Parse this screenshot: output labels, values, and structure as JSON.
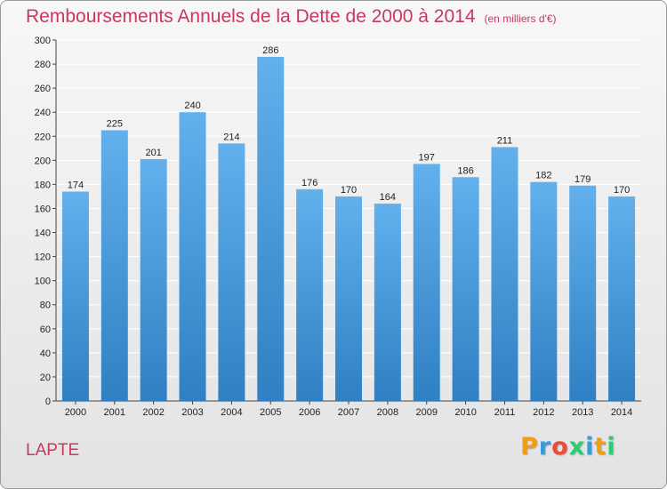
{
  "header": {
    "title": "Remboursements Annuels de la Dette de 2000 à 2014",
    "unit": "(en milliers d'€)"
  },
  "footer": {
    "commune": "LAPTE",
    "logo_letters": [
      "P",
      "r",
      "o",
      "x",
      "i",
      "t",
      "i"
    ],
    "logo_colors": [
      "#f39c12",
      "#3b9ad9",
      "#e74c3c",
      "#2ecc71",
      "#3b9ad9",
      "#f39c12",
      "#2ecc71"
    ]
  },
  "colors": {
    "bar_light": "#62b0ec",
    "bar_dark": "#2f80c4",
    "title": "#c8385f",
    "grid": "#ffffff"
  },
  "chart_data": {
    "type": "bar",
    "title": "Remboursements Annuels de la Dette de 2000 à 2014",
    "subtitle": "(en milliers d'€)",
    "xlabel": "",
    "ylabel": "",
    "categories": [
      "2000",
      "2001",
      "2002",
      "2003",
      "2004",
      "2005",
      "2006",
      "2007",
      "2008",
      "2009",
      "2010",
      "2011",
      "2012",
      "2013",
      "2014"
    ],
    "values": [
      174,
      225,
      201,
      240,
      214,
      286,
      176,
      170,
      164,
      197,
      186,
      211,
      182,
      179,
      170
    ],
    "ylim": [
      0,
      300
    ],
    "yticks": [
      0,
      20,
      40,
      60,
      80,
      100,
      120,
      140,
      160,
      180,
      200,
      220,
      240,
      260,
      280,
      300
    ],
    "grid": true,
    "legend": "none"
  }
}
